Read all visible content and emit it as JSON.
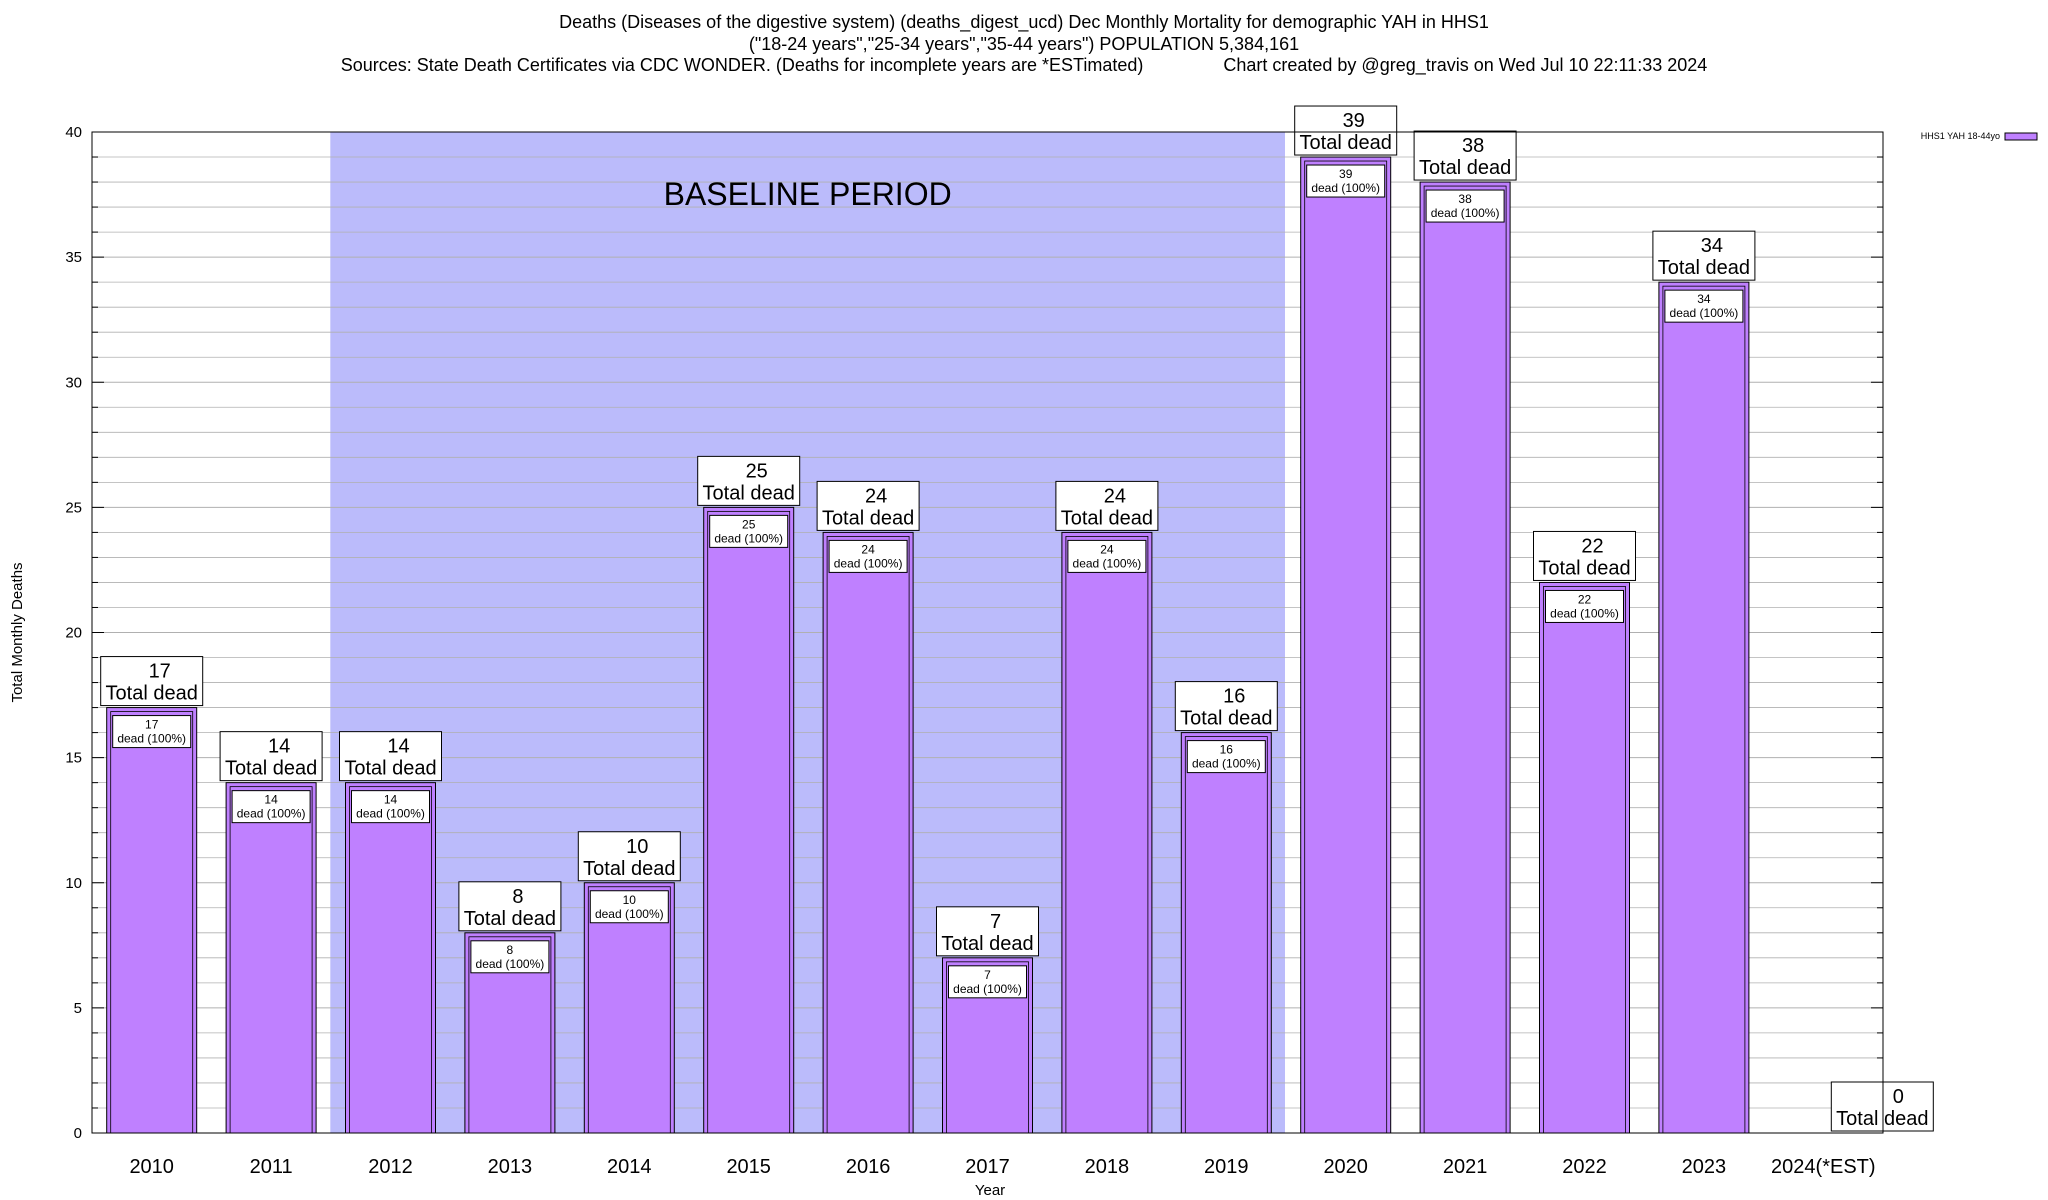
{
  "titles": {
    "line1": "Deaths (Diseases of the digestive system) (deaths_digest_ucd) Dec Monthly Mortality for demographic YAH in HHS1",
    "line2": "(\"18-24 years\",\"25-34 years\",\"35-44 years\") POPULATION 5,384,161",
    "line3": "Sources: State Death Certificates via CDC WONDER. (Deaths for incomplete years are *ESTimated)                Chart created by @greg_travis on Wed Jul 10 22:11:33 2024"
  },
  "colors": {
    "bar_fill": "#bf80ff",
    "bar_stroke": "#000000",
    "baseline_shade": "#bbbbfb",
    "grid": "#b0b0b0",
    "legend_swatch": "#bf80ff"
  },
  "chart_data": {
    "type": "bar",
    "title": "Deaths (Diseases of the digestive system) (deaths_digest_ucd) Dec Monthly Mortality for demographic YAH in HHS1",
    "xlabel": "Year",
    "ylabel": "Total Monthly Deaths",
    "ylim": [
      0,
      40
    ],
    "yticks": [
      0,
      5,
      10,
      15,
      20,
      25,
      30,
      35,
      40
    ],
    "categories": [
      "2010",
      "2011",
      "2012",
      "2013",
      "2014",
      "2015",
      "2016",
      "2017",
      "2018",
      "2019",
      "2020",
      "2021",
      "2022",
      "2023",
      "2024(*EST)"
    ],
    "series": [
      {
        "name": "HHS1 YAH 18-44yo",
        "values": [
          17,
          14,
          14,
          8,
          10,
          25,
          24,
          7,
          24,
          16,
          39,
          38,
          22,
          34,
          0
        ]
      }
    ],
    "outer_label_suffix": "Total dead",
    "inner_label_suffix": "dead (100%)",
    "baseline_period": {
      "label": "BASELINE PERIOD",
      "start": "2012",
      "end": "2019"
    },
    "legend_placement": "top-right",
    "grid": true
  }
}
